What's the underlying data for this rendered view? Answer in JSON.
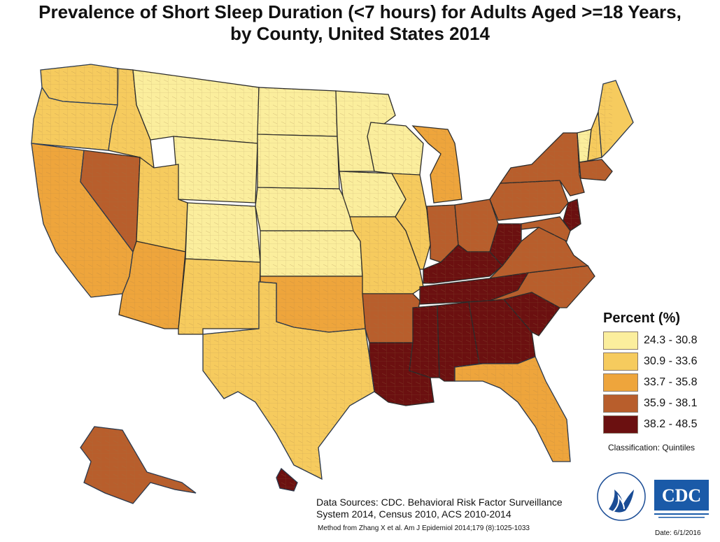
{
  "title": {
    "line1": "Prevalence of Short Sleep Duration (<7 hours) for Adults Aged >=18 Years,",
    "line2": "by County, United States 2014"
  },
  "legend": {
    "title": "Percent (%)",
    "items": [
      {
        "label": "24.3 - 30.8",
        "color": "#fbee9d"
      },
      {
        "label": "30.9 - 33.6",
        "color": "#f6cb5e"
      },
      {
        "label": "33.7 - 35.8",
        "color": "#eea53c"
      },
      {
        "label": "35.9 - 38.1",
        "color": "#b85e2c"
      },
      {
        "label": "38.2 - 48.5",
        "color": "#6b1010"
      }
    ],
    "classification": "Classification: Quintiles"
  },
  "sources": {
    "line1": "Data Sources: CDC. Behavioral Risk Factor Surveillance",
    "line2": "System 2014, Census 2010, ACS 2010-2014",
    "method": "Method from Zhang X et al.  Am J Epidemiol 2014;179 (8):1025-1033"
  },
  "logos": {
    "cdc_text": "CDC"
  },
  "date": "Date: 6/1/2016",
  "state_colors": {
    "WA": 1,
    "OR": 1,
    "CA": 2,
    "NV": 3,
    "ID": 1,
    "MT": 0,
    "WY": 0,
    "UT": 1,
    "AZ": 2,
    "CO": 0,
    "NM": 1,
    "ND": 0,
    "SD": 0,
    "NE": 0,
    "KS": 0,
    "OK": 2,
    "TX": 1,
    "MN": 0,
    "IA": 0,
    "MO": 1,
    "AR": 3,
    "LA": 4,
    "WI": 0,
    "IL": 1,
    "MI": 2,
    "IN": 3,
    "OH": 3,
    "KY": 4,
    "TN": 4,
    "MS": 4,
    "AL": 4,
    "GA": 4,
    "FL": 2,
    "SC": 4,
    "NC": 3,
    "VA": 3,
    "WV": 4,
    "PA": 3,
    "NY": 3,
    "VT": 0,
    "NH": 1,
    "ME": 1,
    "MA": 3,
    "NJ": 4,
    "MD": 3,
    "AK": 3,
    "HI": 4
  }
}
